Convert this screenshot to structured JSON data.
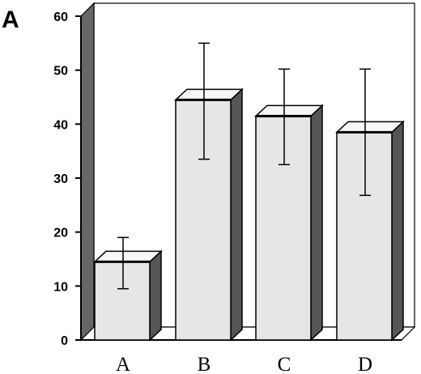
{
  "panel_label": "A",
  "chart_data": {
    "type": "bar",
    "categories": [
      "A",
      "B",
      "C",
      "D"
    ],
    "values": [
      14.5,
      44.5,
      41.5,
      38.5
    ],
    "error_low": [
      9.5,
      33.5,
      32.5,
      26.8
    ],
    "error_high": [
      19.0,
      55.0,
      50.2,
      50.2
    ],
    "title": "",
    "xlabel": "",
    "ylabel": "",
    "ylim": [
      0,
      60
    ],
    "yticks": [
      0,
      10,
      20,
      30,
      40,
      50,
      60
    ],
    "grid": false,
    "style": "3d",
    "colors": {
      "bar_front": "#e6e6e6",
      "bar_side": "#555555",
      "wall": "#666666",
      "frame": "#000000"
    }
  }
}
